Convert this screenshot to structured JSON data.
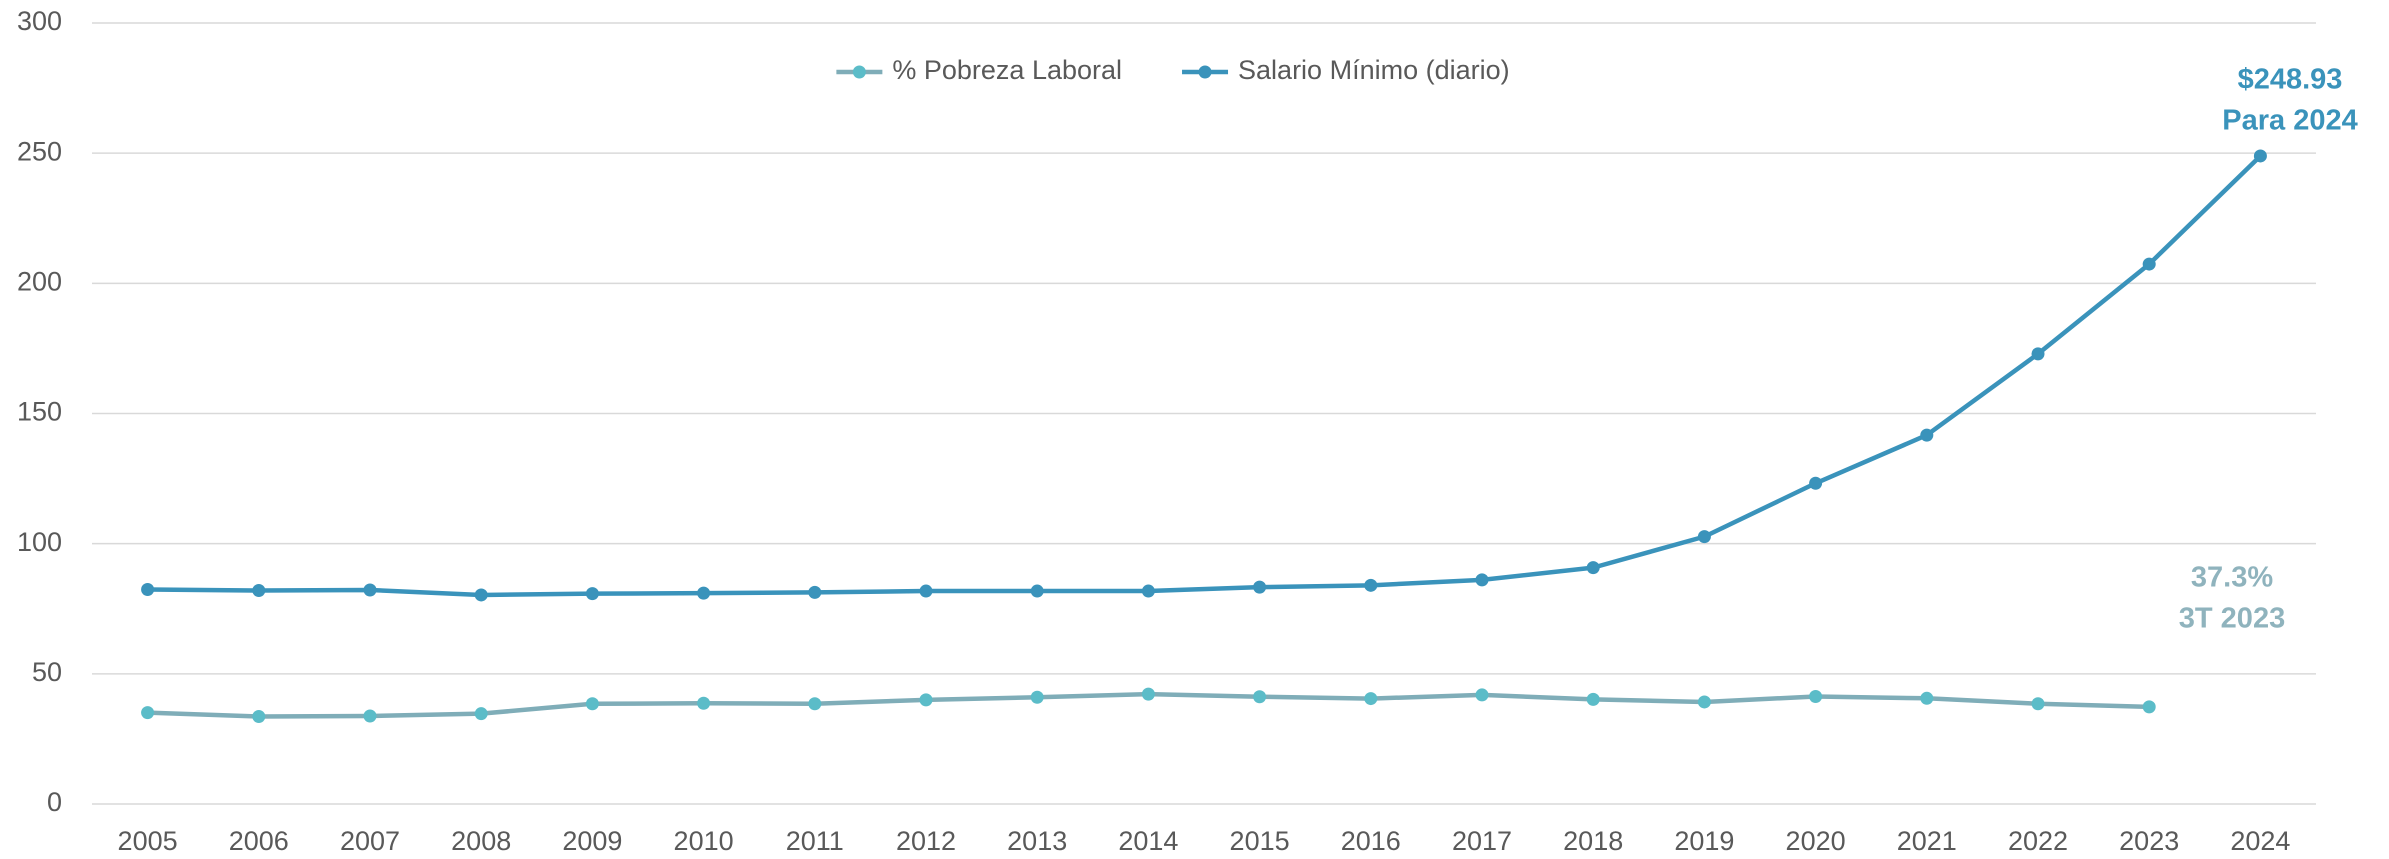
{
  "chart_data": {
    "type": "line",
    "categories": [
      "2005",
      "2006",
      "2007",
      "2008",
      "2009",
      "2010",
      "2011",
      "2012",
      "2013",
      "2014",
      "2015",
      "2016",
      "2017",
      "2018",
      "2019",
      "2020",
      "2021",
      "2022",
      "2023",
      "2024"
    ],
    "series": [
      {
        "name": "% Pobreza Laboral",
        "color": "#7fadb8",
        "marker_color": "#5bbcc8",
        "values": [
          35.1,
          33.6,
          33.8,
          34.7,
          38.5,
          38.7,
          38.5,
          40.0,
          41.0,
          42.2,
          41.2,
          40.5,
          41.9,
          40.2,
          39.2,
          41.3,
          40.6,
          38.5,
          37.3,
          null
        ]
      },
      {
        "name": "Salario Mínimo (diario)",
        "color": "#3a93bb",
        "marker_color": "#3a93bb",
        "values": [
          82.4,
          82.0,
          82.2,
          80.3,
          80.8,
          81.0,
          81.3,
          81.8,
          81.8,
          81.8,
          83.3,
          84.0,
          86.1,
          90.8,
          102.7,
          123.2,
          141.7,
          172.9,
          207.4,
          248.93
        ]
      }
    ],
    "ylim": [
      0,
      300
    ],
    "yticks": [
      0,
      50,
      100,
      150,
      200,
      250,
      300
    ],
    "grid": true,
    "legend": "top",
    "annotations": [
      {
        "lines": [
          "$248.93",
          "Para 2024"
        ],
        "color": "#3a93bb"
      },
      {
        "lines": [
          "37.3%",
          "3T 2023"
        ],
        "color": "#8fb3bd"
      }
    ]
  }
}
